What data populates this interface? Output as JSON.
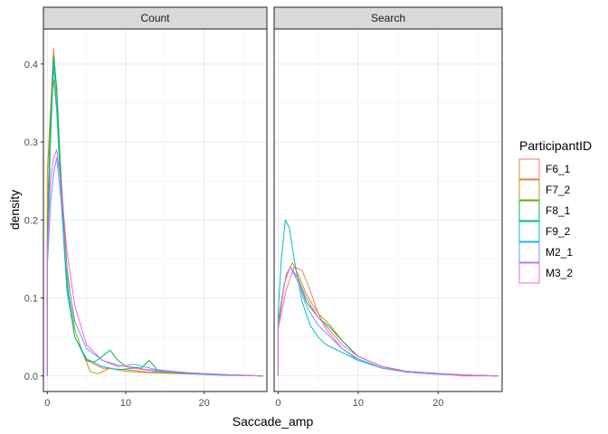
{
  "chart_data": {
    "type": "line",
    "subtype": "density",
    "panels": [
      "Count",
      "Search"
    ],
    "xlabel": "Saccade_amp",
    "ylabel": "density",
    "xlim": [
      -0.5,
      28
    ],
    "ylim": [
      -0.02,
      0.445
    ],
    "xticks": [
      0,
      10,
      20
    ],
    "yticks": [
      0.0,
      0.1,
      0.2,
      0.3,
      0.4
    ],
    "ytick_labels": [
      "0.0",
      "0.1",
      "0.2",
      "0.3",
      "0.4"
    ],
    "grid": true,
    "legend": {
      "title": "ParticipantID",
      "position": "right"
    },
    "series": [
      {
        "name": "F6_1",
        "color": "#F8766D",
        "panels": {
          "Count": [
            [
              0,
              0.2
            ],
            [
              0.4,
              0.34
            ],
            [
              0.8,
              0.42
            ],
            [
              1.2,
              0.36
            ],
            [
              1.8,
              0.22
            ],
            [
              2.5,
              0.11
            ],
            [
              3.5,
              0.05
            ],
            [
              5,
              0.02
            ],
            [
              7,
              0.01
            ],
            [
              10,
              0.008
            ],
            [
              13,
              0.005
            ],
            [
              16,
              0.004
            ],
            [
              20,
              0.002
            ],
            [
              24,
              0.001
            ],
            [
              27.5,
              0
            ]
          ],
          "Search": [
            [
              0,
              0.06
            ],
            [
              1,
              0.11
            ],
            [
              2,
              0.14
            ],
            [
              3,
              0.135
            ],
            [
              4,
              0.11
            ],
            [
              5,
              0.08
            ],
            [
              6,
              0.06
            ],
            [
              8,
              0.035
            ],
            [
              10,
              0.02
            ],
            [
              13,
              0.01
            ],
            [
              16,
              0.006
            ],
            [
              20,
              0.003
            ],
            [
              23,
              0
            ],
            [
              27.5,
              0
            ]
          ]
        }
      },
      {
        "name": "F7_2",
        "color": "#B79F00",
        "panels": {
          "Count": [
            [
              0,
              0.26
            ],
            [
              0.4,
              0.34
            ],
            [
              0.8,
              0.38
            ],
            [
              1.2,
              0.34
            ],
            [
              1.8,
              0.25
            ],
            [
              2.5,
              0.14
            ],
            [
              3.5,
              0.06
            ],
            [
              4.5,
              0.03
            ],
            [
              5.5,
              0.005
            ],
            [
              6.5,
              0.003
            ],
            [
              8,
              0.01
            ],
            [
              10,
              0.006
            ],
            [
              13,
              0.004
            ],
            [
              16,
              0.003
            ],
            [
              20,
              0.002
            ],
            [
              24,
              0.001
            ],
            [
              27.5,
              0
            ]
          ],
          "Search": [
            [
              0,
              0.07
            ],
            [
              1,
              0.13
            ],
            [
              1.8,
              0.145
            ],
            [
              2.5,
              0.13
            ],
            [
              3.5,
              0.105
            ],
            [
              5,
              0.08
            ],
            [
              6.5,
              0.065
            ],
            [
              8,
              0.045
            ],
            [
              10,
              0.025
            ],
            [
              13,
              0.012
            ],
            [
              16,
              0.006
            ],
            [
              20,
              0.003
            ],
            [
              24,
              0.001
            ],
            [
              27.5,
              0
            ]
          ]
        }
      },
      {
        "name": "F8_1",
        "color": "#00BA38",
        "panels": {
          "Count": [
            [
              0,
              0.17
            ],
            [
              0.4,
              0.32
            ],
            [
              0.8,
              0.41
            ],
            [
              1.2,
              0.37
            ],
            [
              1.8,
              0.24
            ],
            [
              2.5,
              0.12
            ],
            [
              3.5,
              0.05
            ],
            [
              5,
              0.02
            ],
            [
              6,
              0.018
            ],
            [
              7,
              0.025
            ],
            [
              8,
              0.033
            ],
            [
              9,
              0.02
            ],
            [
              10,
              0.012
            ],
            [
              12,
              0.01
            ],
            [
              13,
              0.02
            ],
            [
              14,
              0.008
            ],
            [
              17,
              0.004
            ],
            [
              20,
              0.002
            ],
            [
              24,
              0.001
            ],
            [
              27.5,
              0
            ]
          ],
          "Search": [
            [
              0,
              0.07
            ],
            [
              0.8,
              0.12
            ],
            [
              1.5,
              0.14
            ],
            [
              2.5,
              0.125
            ],
            [
              3.5,
              0.095
            ],
            [
              5,
              0.075
            ],
            [
              6.5,
              0.062
            ],
            [
              8,
              0.045
            ],
            [
              10,
              0.025
            ],
            [
              13,
              0.012
            ],
            [
              16,
              0.006
            ],
            [
              20,
              0.003
            ],
            [
              24,
              0.001
            ],
            [
              27.5,
              0
            ]
          ]
        }
      },
      {
        "name": "F9_2",
        "color": "#00BFC4",
        "panels": {
          "Count": [
            [
              0,
              0.15
            ],
            [
              0.4,
              0.3
            ],
            [
              0.8,
              0.4
            ],
            [
              1.2,
              0.34
            ],
            [
              1.8,
              0.22
            ],
            [
              2.5,
              0.11
            ],
            [
              3.5,
              0.05
            ],
            [
              5,
              0.022
            ],
            [
              7,
              0.012
            ],
            [
              9,
              0.008
            ],
            [
              11,
              0.01
            ],
            [
              14,
              0.006
            ],
            [
              18,
              0.003
            ],
            [
              22,
              0.001
            ],
            [
              27.5,
              0
            ]
          ],
          "Search": [
            [
              0,
              0.08
            ],
            [
              0.4,
              0.15
            ],
            [
              0.9,
              0.2
            ],
            [
              1.4,
              0.19
            ],
            [
              2,
              0.15
            ],
            [
              3,
              0.095
            ],
            [
              4,
              0.065
            ],
            [
              5,
              0.05
            ],
            [
              6,
              0.04
            ],
            [
              8,
              0.03
            ],
            [
              10,
              0.02
            ],
            [
              13,
              0.01
            ],
            [
              16,
              0.005
            ],
            [
              20,
              0.002
            ],
            [
              24,
              0.001
            ],
            [
              27.5,
              0
            ]
          ]
        }
      },
      {
        "name": "M2_1",
        "color": "#619CFF",
        "panels": {
          "Count": [
            [
              0,
              0.14
            ],
            [
              0.4,
              0.22
            ],
            [
              0.8,
              0.26
            ],
            [
              1.2,
              0.28
            ],
            [
              1.8,
              0.22
            ],
            [
              2.5,
              0.13
            ],
            [
              3.5,
              0.07
            ],
            [
              5,
              0.035
            ],
            [
              7,
              0.02
            ],
            [
              9,
              0.012
            ],
            [
              11,
              0.015
            ],
            [
              14,
              0.008
            ],
            [
              18,
              0.004
            ],
            [
              22,
              0.002
            ],
            [
              27.5,
              0
            ]
          ],
          "Search": [
            [
              0,
              0.06
            ],
            [
              0.8,
              0.12
            ],
            [
              1.5,
              0.14
            ],
            [
              2.5,
              0.12
            ],
            [
              3.5,
              0.09
            ],
            [
              5,
              0.065
            ],
            [
              6.5,
              0.05
            ],
            [
              8,
              0.035
            ],
            [
              10,
              0.022
            ],
            [
              13,
              0.01
            ],
            [
              16,
              0.005
            ],
            [
              20,
              0.002
            ],
            [
              24,
              0.001
            ],
            [
              27.5,
              0
            ]
          ]
        }
      },
      {
        "name": "M3_2",
        "color": "#F564E3",
        "panels": {
          "Count": [
            [
              0,
              0.16
            ],
            [
              0.4,
              0.25
            ],
            [
              0.8,
              0.28
            ],
            [
              1.2,
              0.29
            ],
            [
              1.8,
              0.24
            ],
            [
              2.5,
              0.16
            ],
            [
              3.5,
              0.09
            ],
            [
              5,
              0.04
            ],
            [
              7,
              0.02
            ],
            [
              9,
              0.014
            ],
            [
              11,
              0.01
            ],
            [
              14,
              0.007
            ],
            [
              18,
              0.004
            ],
            [
              22,
              0.002
            ],
            [
              27.5,
              0
            ]
          ],
          "Search": [
            [
              0,
              0.065
            ],
            [
              0.8,
              0.12
            ],
            [
              1.5,
              0.14
            ],
            [
              2.5,
              0.125
            ],
            [
              3.5,
              0.1
            ],
            [
              5,
              0.075
            ],
            [
              6.5,
              0.058
            ],
            [
              8,
              0.04
            ],
            [
              10,
              0.025
            ],
            [
              13,
              0.012
            ],
            [
              16,
              0.006
            ],
            [
              20,
              0.003
            ],
            [
              24,
              0.001
            ],
            [
              27.5,
              0
            ]
          ]
        }
      }
    ]
  }
}
